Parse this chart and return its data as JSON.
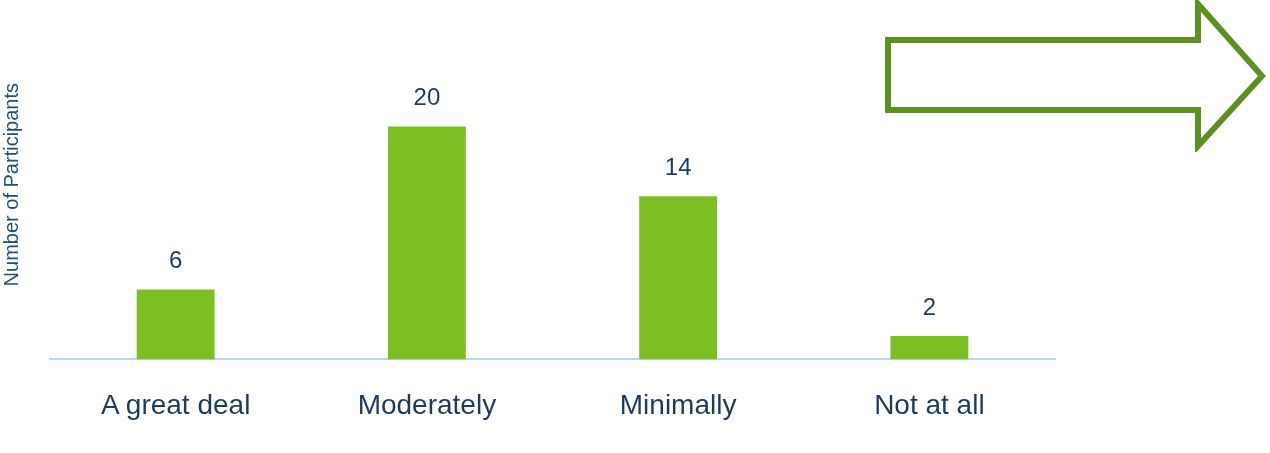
{
  "chart_data": {
    "type": "bar",
    "ylabel": "Number of Participants",
    "categories": [
      "A great deal",
      "Moderately",
      "Minimally",
      "Not at all"
    ],
    "values": [
      6,
      20,
      14,
      2
    ],
    "color": "#7dbe22",
    "data_labels": true,
    "grid": false,
    "legend": false
  }
}
